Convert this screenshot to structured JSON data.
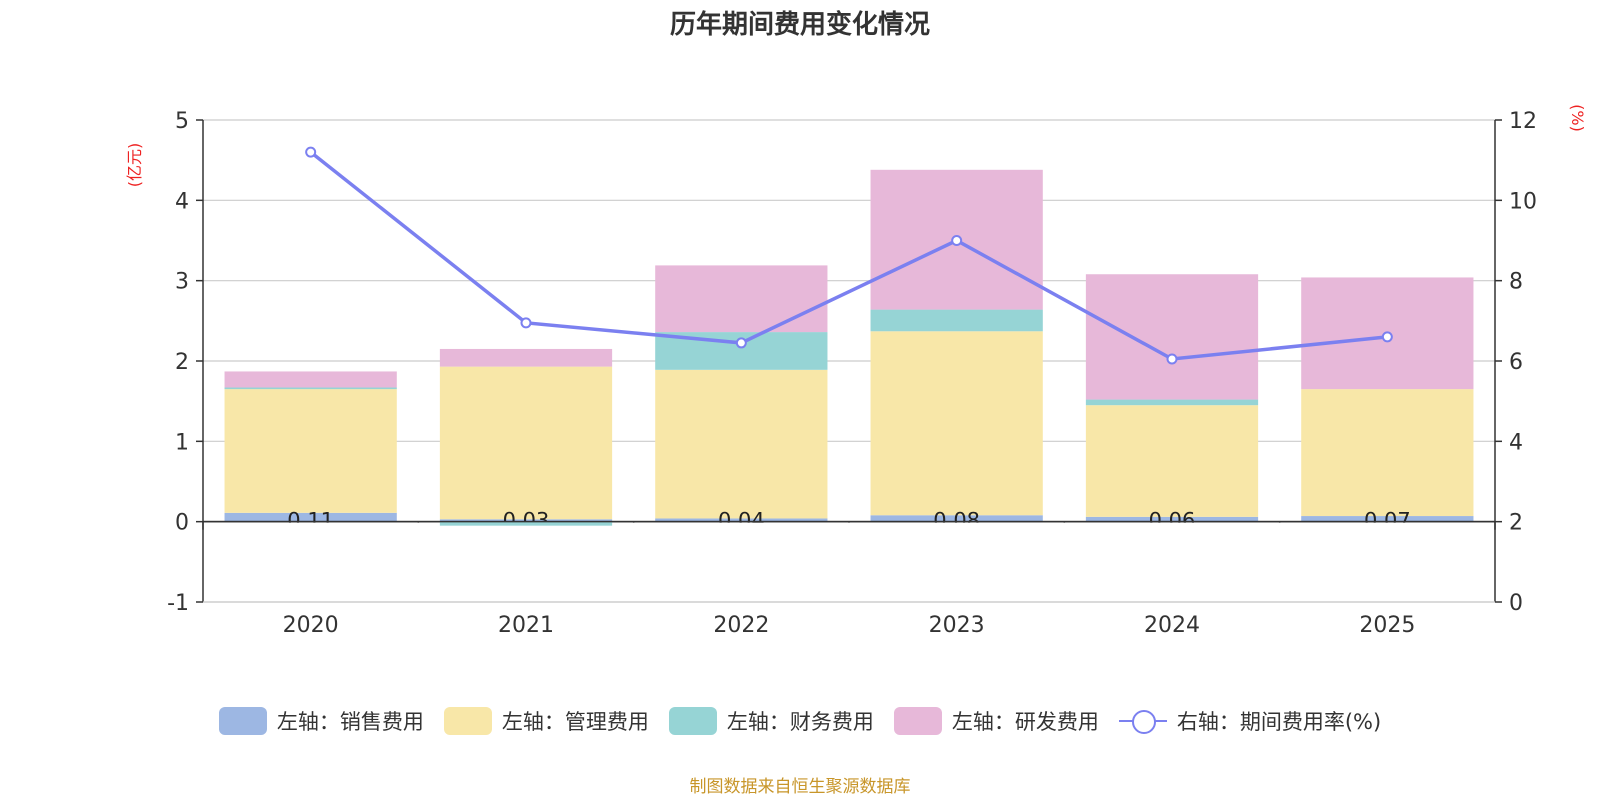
{
  "title": "历年期间费用变化情况",
  "source": "制图数据来自恒生聚源数据库",
  "colors": {
    "sales": "#9db7e3",
    "admin": "#f8e7a8",
    "finance": "#96d4d5",
    "rd": "#e7b8d9",
    "rate": "#7b80f0",
    "axis_unit": "#ee2222"
  },
  "legend": [
    {
      "label": "左轴：销售费用",
      "color": "#9db7e3",
      "kind": "box"
    },
    {
      "label": "左轴：管理费用",
      "color": "#f8e7a8",
      "kind": "box"
    },
    {
      "label": "左轴：财务费用",
      "color": "#96d4d5",
      "kind": "box"
    },
    {
      "label": "左轴：研发费用",
      "color": "#e7b8d9",
      "kind": "box"
    },
    {
      "label": "右轴：期间费用率(%)",
      "color": "#7b80f0",
      "kind": "line"
    }
  ],
  "chart_data": {
    "type": "bar",
    "stacked": true,
    "categories": [
      "2020",
      "2021",
      "2022",
      "2023",
      "2024",
      "2025"
    ],
    "series": [
      {
        "name": "左轴：销售费用",
        "axis": "left",
        "values": [
          0.11,
          0.03,
          0.04,
          0.08,
          0.06,
          0.07
        ],
        "show_labels": true
      },
      {
        "name": "左轴：管理费用",
        "axis": "left",
        "values": [
          1.54,
          1.9,
          1.85,
          2.29,
          1.39,
          1.58
        ]
      },
      {
        "name": "左轴：财务费用",
        "axis": "left",
        "values": [
          0.02,
          -0.05,
          0.47,
          0.27,
          0.07,
          0.0
        ]
      },
      {
        "name": "左轴：研发费用",
        "axis": "left",
        "values": [
          0.2,
          0.22,
          0.83,
          1.74,
          1.56,
          1.39
        ]
      },
      {
        "name": "右轴：期间费用率(%)",
        "axis": "right",
        "type": "line",
        "values": [
          11.2,
          6.95,
          6.45,
          9.0,
          6.05,
          6.6
        ]
      }
    ],
    "y_left": {
      "label": "(亿元)",
      "min": -1,
      "max": 5,
      "ticks": [
        -1,
        0,
        1,
        2,
        3,
        4,
        5
      ]
    },
    "y_right": {
      "label": "(%)",
      "min": 0,
      "max": 12,
      "ticks": [
        0,
        2,
        4,
        6,
        8,
        10,
        12
      ]
    },
    "grid": true,
    "legend_position": "bottom"
  }
}
